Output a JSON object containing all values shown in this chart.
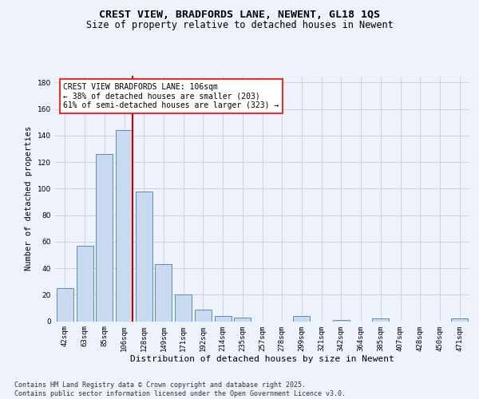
{
  "title1": "CREST VIEW, BRADFORDS LANE, NEWENT, GL18 1QS",
  "title2": "Size of property relative to detached houses in Newent",
  "xlabel": "Distribution of detached houses by size in Newent",
  "ylabel": "Number of detached properties",
  "categories": [
    "42sqm",
    "63sqm",
    "85sqm",
    "106sqm",
    "128sqm",
    "149sqm",
    "171sqm",
    "192sqm",
    "214sqm",
    "235sqm",
    "257sqm",
    "278sqm",
    "299sqm",
    "321sqm",
    "342sqm",
    "364sqm",
    "385sqm",
    "407sqm",
    "428sqm",
    "450sqm",
    "471sqm"
  ],
  "values": [
    25,
    57,
    126,
    144,
    98,
    43,
    20,
    9,
    4,
    3,
    0,
    0,
    4,
    0,
    1,
    0,
    2,
    0,
    0,
    0,
    2
  ],
  "bar_color": "#c9d9f0",
  "bar_edge_color": "#5b8db8",
  "vline_x_index": 3,
  "vline_color": "#cc0000",
  "annotation_line1": "CREST VIEW BRADFORDS LANE: 106sqm",
  "annotation_line2": "← 38% of detached houses are smaller (203)",
  "annotation_line3": "61% of semi-detached houses are larger (323) →",
  "ylim": [
    0,
    185
  ],
  "yticks": [
    0,
    20,
    40,
    60,
    80,
    100,
    120,
    140,
    160,
    180
  ],
  "background_color": "#eef2fb",
  "grid_color": "#c5cde0",
  "footer_text": "Contains HM Land Registry data © Crown copyright and database right 2025.\nContains public sector information licensed under the Open Government Licence v3.0.",
  "title1_fontsize": 9.5,
  "title2_fontsize": 8.5,
  "xlabel_fontsize": 8,
  "ylabel_fontsize": 7.5,
  "tick_fontsize": 6.5,
  "annotation_fontsize": 7,
  "footer_fontsize": 6
}
